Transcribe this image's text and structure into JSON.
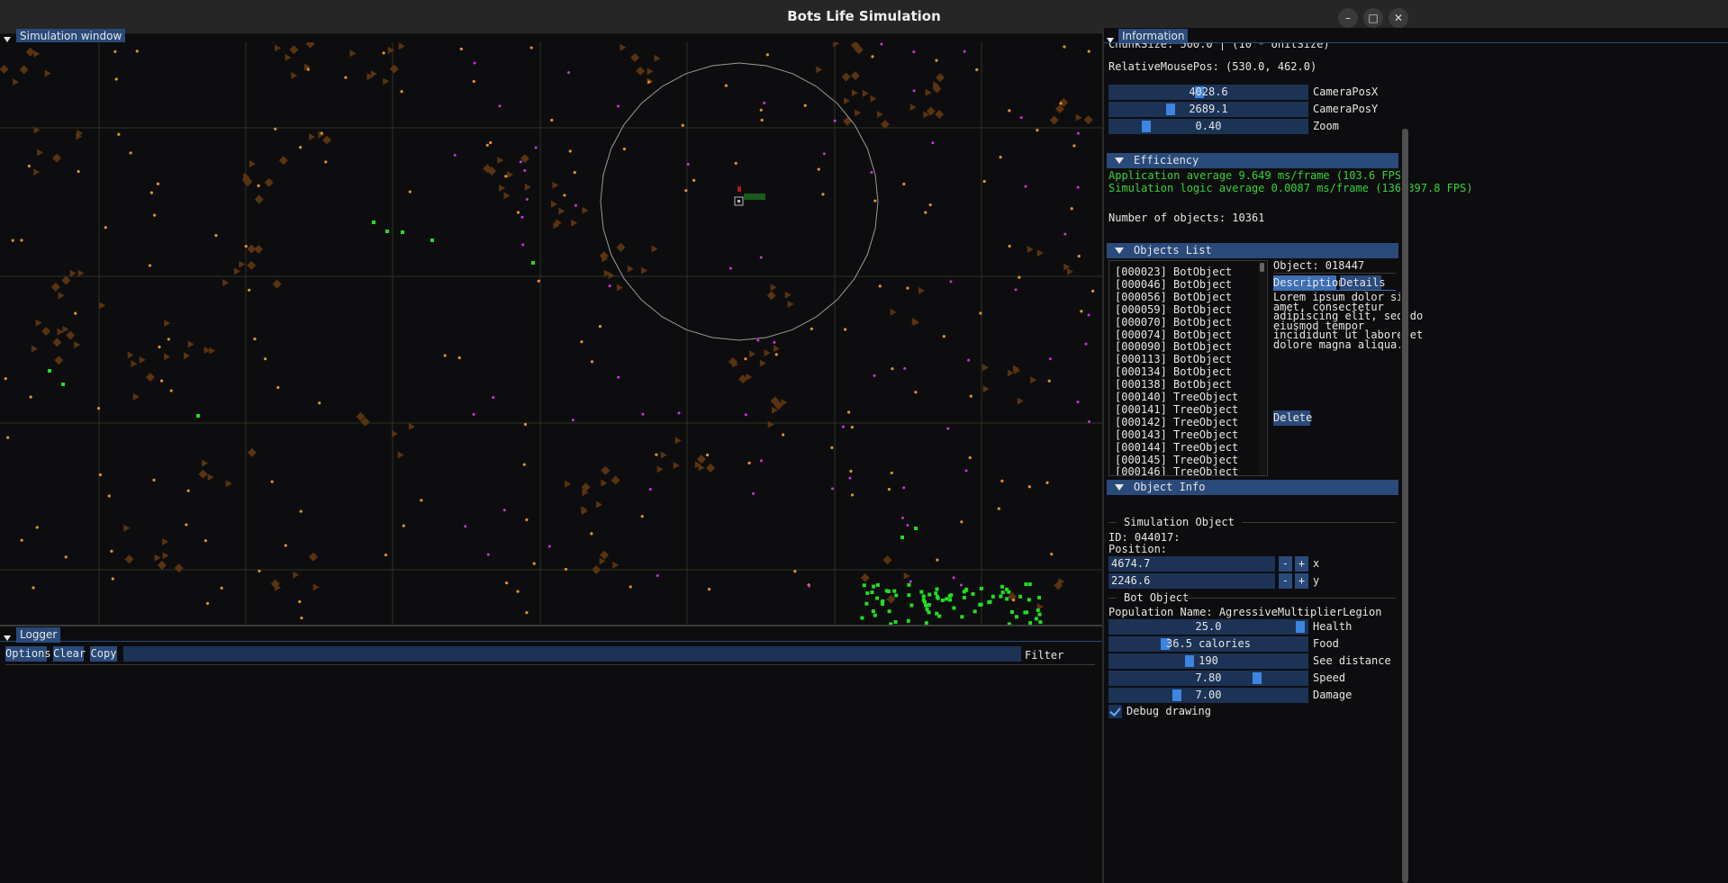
{
  "window": {
    "title": "Bots Life Simulation",
    "controls": {
      "minimize": "–",
      "maximize": "□",
      "close": "✕"
    }
  },
  "simulation_window": {
    "title": "Simulation window"
  },
  "logger": {
    "title": "Logger",
    "options_label": "Options",
    "clear_label": "Clear",
    "copy_label": "Copy",
    "filter_value": "",
    "filter_label": "Filter"
  },
  "info": {
    "title": "Information",
    "chunk_size": "ChunkSize: 500.0 | (10 * UnitSize)",
    "relative_mouse_pos": "RelativeMousePos: (530.0, 462.0)",
    "camera_x": {
      "value": "4028.6",
      "label": "CameraPosX",
      "fill": 0.45
    },
    "camera_y": {
      "value": "2689.1",
      "label": "CameraPosY",
      "fill": 0.3
    },
    "zoom": {
      "value": "0.40",
      "label": "Zoom",
      "fill": 0.17
    },
    "efficiency": {
      "title": "Efficiency",
      "app_line": "Application average 9.649 ms/frame (103.6 FPS)",
      "sim_line": "Simulation logic average 0.0087 ms/frame (1362397.8 FPS)",
      "color": "#3ad13a"
    },
    "num_objects": "Number of objects: 10361",
    "objects_list": {
      "title": "Objects List",
      "items": [
        "[000023] BotObject",
        "[000046] BotObject",
        "[000056] BotObject",
        "[000059] BotObject",
        "[000070] BotObject",
        "[000074] BotObject",
        "[000090] BotObject",
        "[000113] BotObject",
        "[000134] BotObject",
        "[000138] BotObject",
        "[000140] TreeObject",
        "[000141] TreeObject",
        "[000142] TreeObject",
        "[000143] TreeObject",
        "[000144] TreeObject",
        "[000145] TreeObject",
        "[000146] TreeObject"
      ],
      "selected_object": "Object: 018447",
      "tab_description": "Description",
      "tab_details": "Details",
      "description_lines": [
        "Lorem ipsum dolor sit",
        "amet, consectetur",
        "adipiscing elit, sed do",
        "eiusmod tempor",
        "incididunt ut labore et",
        "dolore magna aliqua."
      ],
      "delete_label": "Delete"
    },
    "object_info": {
      "title": "Object Info",
      "sim_object_title": "Simulation Object",
      "id": "ID: 044017:",
      "position_label": "Position:",
      "pos_x": "4674.7",
      "pos_y": "2246.6",
      "minus": "-",
      "plus": "+",
      "x_label": "x",
      "y_label": "y",
      "bot_object_title": "Bot Object",
      "population": "Population Name: AgressiveMultiplierLegion",
      "health": {
        "value": "25.0",
        "label": "Health",
        "fill": 0.99
      },
      "food": {
        "value": "36.5 calories",
        "label": "Food",
        "fill": 0.27
      },
      "see_distance": {
        "value": "190",
        "label": "See distance",
        "fill": 0.4
      },
      "speed": {
        "value": "7.80",
        "label": "Speed",
        "fill": 0.76
      },
      "damage": {
        "value": "7.00",
        "label": "Damage",
        "fill": 0.33
      },
      "debug_drawing": "Debug drawing"
    }
  },
  "colors": {
    "accent": "#294a7a",
    "grab": "#3d85e0",
    "bot_green": "#22dd22",
    "food_orange": "#e6902a",
    "tree_brown": "#5a3310",
    "magenta": "#cc33dd",
    "grid": "#2b3320"
  }
}
